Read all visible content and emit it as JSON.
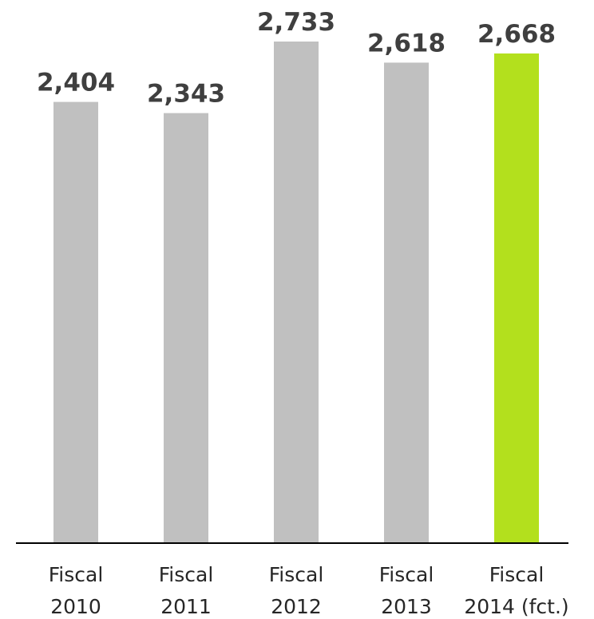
{
  "chart_data": {
    "type": "bar",
    "title": "",
    "xlabel": "",
    "ylabel": "",
    "ylim": [
      0,
      2733
    ],
    "grid": false,
    "categories": [
      [
        "Fiscal",
        "2010"
      ],
      [
        "Fiscal",
        "2011"
      ],
      [
        "Fiscal",
        "2012"
      ],
      [
        "Fiscal",
        "2013"
      ],
      [
        "Fiscal",
        "2014 (fct.)"
      ]
    ],
    "values": [
      2404,
      2343,
      2733,
      2618,
      2668
    ],
    "value_labels": [
      "2,404",
      "2,343",
      "2,733",
      "2,618",
      "2,668"
    ],
    "colors": {
      "bar_default": "#c0c0c0",
      "bar_highlight": "#b3e01d",
      "axis": "#000000"
    },
    "highlight_index": 4
  }
}
